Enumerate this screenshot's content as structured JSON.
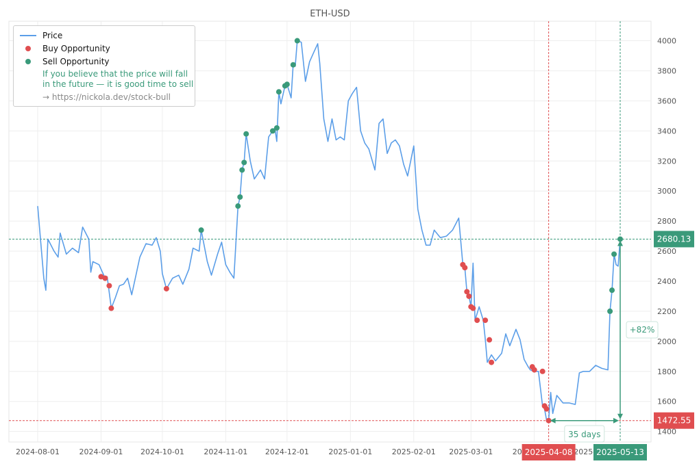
{
  "chart_data": {
    "type": "line",
    "title": "ETH-USD",
    "x_start": "2024-08-01",
    "x_end": "2025-05-13",
    "ylim": [
      1330,
      4130
    ],
    "y_ticks": [
      "1400",
      "1600",
      "1800",
      "2000",
      "2200",
      "2400",
      "2600",
      "2800",
      "3000",
      "3200",
      "3400",
      "3600",
      "3800",
      "4000"
    ],
    "x_ticks": [
      {
        "date": "2024-08-01",
        "label": "2024-08-01"
      },
      {
        "date": "2024-09-01",
        "label": "2024-09-01"
      },
      {
        "date": "2024-10-01",
        "label": "2024-10-01"
      },
      {
        "date": "2024-11-01",
        "label": "2024-11-01"
      },
      {
        "date": "2024-12-01",
        "label": "2024-12-01"
      },
      {
        "date": "2025-01-01",
        "label": "2025-01-01"
      },
      {
        "date": "2025-02-01",
        "label": "2025-02-01"
      },
      {
        "date": "2025-03-01",
        "label": "2025-03-01"
      },
      {
        "date": "2025-04-01",
        "label": "2025-04-01"
      },
      {
        "date": "2025-05-01",
        "label": "2025-05-01"
      }
    ],
    "grid": true,
    "legend_position": "top-left",
    "series": [
      {
        "name": "Price",
        "color": "#5b9ee8",
        "points": [
          [
            "2024-08-01",
            2900
          ],
          [
            "2024-08-04",
            2420
          ],
          [
            "2024-08-05",
            2340
          ],
          [
            "2024-08-06",
            2680
          ],
          [
            "2024-08-09",
            2600
          ],
          [
            "2024-08-11",
            2560
          ],
          [
            "2024-08-12",
            2720
          ],
          [
            "2024-08-15",
            2580
          ],
          [
            "2024-08-18",
            2620
          ],
          [
            "2024-08-21",
            2590
          ],
          [
            "2024-08-23",
            2760
          ],
          [
            "2024-08-26",
            2680
          ],
          [
            "2024-08-27",
            2460
          ],
          [
            "2024-08-28",
            2530
          ],
          [
            "2024-08-31",
            2510
          ],
          [
            "2024-09-02",
            2450
          ],
          [
            "2024-09-03",
            2420
          ],
          [
            "2024-09-04",
            2430
          ],
          [
            "2024-09-06",
            2220
          ],
          [
            "2024-09-08",
            2290
          ],
          [
            "2024-09-10",
            2370
          ],
          [
            "2024-09-12",
            2380
          ],
          [
            "2024-09-14",
            2420
          ],
          [
            "2024-09-16",
            2310
          ],
          [
            "2024-09-20",
            2560
          ],
          [
            "2024-09-23",
            2650
          ],
          [
            "2024-09-26",
            2640
          ],
          [
            "2024-09-28",
            2690
          ],
          [
            "2024-09-30",
            2600
          ],
          [
            "2024-10-01",
            2450
          ],
          [
            "2024-10-03",
            2350
          ],
          [
            "2024-10-06",
            2420
          ],
          [
            "2024-10-09",
            2440
          ],
          [
            "2024-10-11",
            2380
          ],
          [
            "2024-10-14",
            2480
          ],
          [
            "2024-10-16",
            2620
          ],
          [
            "2024-10-19",
            2600
          ],
          [
            "2024-10-20",
            2740
          ],
          [
            "2024-10-23",
            2530
          ],
          [
            "2024-10-25",
            2440
          ],
          [
            "2024-10-28",
            2580
          ],
          [
            "2024-10-30",
            2660
          ],
          [
            "2024-11-01",
            2510
          ],
          [
            "2024-11-03",
            2460
          ],
          [
            "2024-11-05",
            2420
          ],
          [
            "2024-11-07",
            2900
          ],
          [
            "2024-11-08",
            2960
          ],
          [
            "2024-11-09",
            3140
          ],
          [
            "2024-11-10",
            3190
          ],
          [
            "2024-11-11",
            3380
          ],
          [
            "2024-11-13",
            3200
          ],
          [
            "2024-11-15",
            3080
          ],
          [
            "2024-11-18",
            3140
          ],
          [
            "2024-11-20",
            3080
          ],
          [
            "2024-11-22",
            3360
          ],
          [
            "2024-11-24",
            3400
          ],
          [
            "2024-11-25",
            3420
          ],
          [
            "2024-11-26",
            3330
          ],
          [
            "2024-11-27",
            3660
          ],
          [
            "2024-11-28",
            3580
          ],
          [
            "2024-11-30",
            3700
          ],
          [
            "2024-12-01",
            3710
          ],
          [
            "2024-12-03",
            3620
          ],
          [
            "2024-12-04",
            3840
          ],
          [
            "2024-12-05",
            3830
          ],
          [
            "2024-12-06",
            4000
          ],
          [
            "2024-12-08",
            3990
          ],
          [
            "2024-12-10",
            3730
          ],
          [
            "2024-12-12",
            3860
          ],
          [
            "2024-12-14",
            3920
          ],
          [
            "2024-12-16",
            3980
          ],
          [
            "2024-12-17",
            3850
          ],
          [
            "2024-12-19",
            3480
          ],
          [
            "2024-12-21",
            3330
          ],
          [
            "2024-12-23",
            3480
          ],
          [
            "2024-12-25",
            3340
          ],
          [
            "2024-12-27",
            3360
          ],
          [
            "2024-12-29",
            3340
          ],
          [
            "2024-12-31",
            3600
          ],
          [
            "2025-01-02",
            3650
          ],
          [
            "2025-01-04",
            3690
          ],
          [
            "2025-01-06",
            3400
          ],
          [
            "2025-01-08",
            3320
          ],
          [
            "2025-01-10",
            3280
          ],
          [
            "2025-01-13",
            3140
          ],
          [
            "2025-01-15",
            3450
          ],
          [
            "2025-01-17",
            3480
          ],
          [
            "2025-01-19",
            3250
          ],
          [
            "2025-01-21",
            3320
          ],
          [
            "2025-01-23",
            3340
          ],
          [
            "2025-01-25",
            3300
          ],
          [
            "2025-01-27",
            3180
          ],
          [
            "2025-01-29",
            3100
          ],
          [
            "2025-02-01",
            3300
          ],
          [
            "2025-02-03",
            2880
          ],
          [
            "2025-02-05",
            2740
          ],
          [
            "2025-02-07",
            2640
          ],
          [
            "2025-02-09",
            2640
          ],
          [
            "2025-02-11",
            2740
          ],
          [
            "2025-02-14",
            2690
          ],
          [
            "2025-02-17",
            2700
          ],
          [
            "2025-02-20",
            2740
          ],
          [
            "2025-02-23",
            2820
          ],
          [
            "2025-02-25",
            2510
          ],
          [
            "2025-02-26",
            2490
          ],
          [
            "2025-02-27",
            2330
          ],
          [
            "2025-02-28",
            2300
          ],
          [
            "2025-03-01",
            2230
          ],
          [
            "2025-03-02",
            2520
          ],
          [
            "2025-03-03",
            2140
          ],
          [
            "2025-03-05",
            2230
          ],
          [
            "2025-03-07",
            2140
          ],
          [
            "2025-03-08",
            2010
          ],
          [
            "2025-03-09",
            1860
          ],
          [
            "2025-03-11",
            1910
          ],
          [
            "2025-03-13",
            1870
          ],
          [
            "2025-03-16",
            1920
          ],
          [
            "2025-03-18",
            2050
          ],
          [
            "2025-03-20",
            1970
          ],
          [
            "2025-03-23",
            2080
          ],
          [
            "2025-03-25",
            2010
          ],
          [
            "2025-03-27",
            1880
          ],
          [
            "2025-03-29",
            1830
          ],
          [
            "2025-03-30",
            1810
          ],
          [
            "2025-04-01",
            1800
          ],
          [
            "2025-04-03",
            1800
          ],
          [
            "2025-04-05",
            1570
          ],
          [
            "2025-04-06",
            1550
          ],
          [
            "2025-04-07",
            1475
          ],
          [
            "2025-04-08",
            1472.55
          ],
          [
            "2025-04-09",
            1660
          ],
          [
            "2025-04-10",
            1520
          ],
          [
            "2025-04-12",
            1640
          ],
          [
            "2025-04-15",
            1590
          ],
          [
            "2025-04-18",
            1590
          ],
          [
            "2025-04-21",
            1580
          ],
          [
            "2025-04-23",
            1790
          ],
          [
            "2025-04-25",
            1800
          ],
          [
            "2025-04-28",
            1800
          ],
          [
            "2025-05-01",
            1840
          ],
          [
            "2025-05-04",
            1820
          ],
          [
            "2025-05-07",
            1810
          ],
          [
            "2025-05-08",
            2200
          ],
          [
            "2025-05-09",
            2340
          ],
          [
            "2025-05-10",
            2580
          ],
          [
            "2025-05-11",
            2510
          ],
          [
            "2025-05-12",
            2500
          ],
          [
            "2025-05-13",
            2680.13
          ]
        ]
      }
    ],
    "buy_points": [
      [
        "2024-09-01",
        2430
      ],
      [
        "2024-09-03",
        2420
      ],
      [
        "2024-09-05",
        2370
      ],
      [
        "2024-09-06",
        2220
      ],
      [
        "2024-10-03",
        2350
      ],
      [
        "2025-02-25",
        2510
      ],
      [
        "2025-02-26",
        2490
      ],
      [
        "2025-02-27",
        2330
      ],
      [
        "2025-02-28",
        2300
      ],
      [
        "2025-03-01",
        2230
      ],
      [
        "2025-03-02",
        2220
      ],
      [
        "2025-03-04",
        2140
      ],
      [
        "2025-03-08",
        2140
      ],
      [
        "2025-03-10",
        2010
      ],
      [
        "2025-03-11",
        1860
      ],
      [
        "2025-03-31",
        1830
      ],
      [
        "2025-04-01",
        1810
      ],
      [
        "2025-04-05",
        1800
      ],
      [
        "2025-04-06",
        1570
      ],
      [
        "2025-04-07",
        1550
      ],
      [
        "2025-04-08",
        1472.55
      ]
    ],
    "sell_points": [
      [
        "2024-10-20",
        2740
      ],
      [
        "2024-11-07",
        2900
      ],
      [
        "2024-11-08",
        2960
      ],
      [
        "2024-11-09",
        3140
      ],
      [
        "2024-11-10",
        3190
      ],
      [
        "2024-11-11",
        3380
      ],
      [
        "2024-11-24",
        3400
      ],
      [
        "2024-11-26",
        3420
      ],
      [
        "2024-11-27",
        3660
      ],
      [
        "2024-11-30",
        3700
      ],
      [
        "2024-12-01",
        3710
      ],
      [
        "2024-12-04",
        3840
      ],
      [
        "2024-12-06",
        4000
      ],
      [
        "2025-05-08",
        2200
      ],
      [
        "2025-05-09",
        2340
      ],
      [
        "2025-05-10",
        2580
      ],
      [
        "2025-05-13",
        2680.13
      ]
    ],
    "buy_marker": {
      "date": "2025-04-08",
      "price_label": "1472.55",
      "date_label": "2025-04-08"
    },
    "sell_marker": {
      "date": "2025-05-13",
      "price_label": "2680.13",
      "date_label": "2025-05-13"
    },
    "days_label": "35 days",
    "change_label": "+82%",
    "colors": {
      "line": "#5b9ee8",
      "buy": "#e04e50",
      "sell": "#3a9a7a",
      "grid": "#eeeeee",
      "axis_text": "#555555"
    }
  },
  "legend": {
    "price_label": "Price",
    "buy_label": "Buy Opportunity",
    "sell_label": "Sell Opportunity",
    "note_line1": "If you believe that the price will fall",
    "note_line2": "in the future — it is good time to sell",
    "link": "→ https://nickola.dev/stock-bull"
  }
}
